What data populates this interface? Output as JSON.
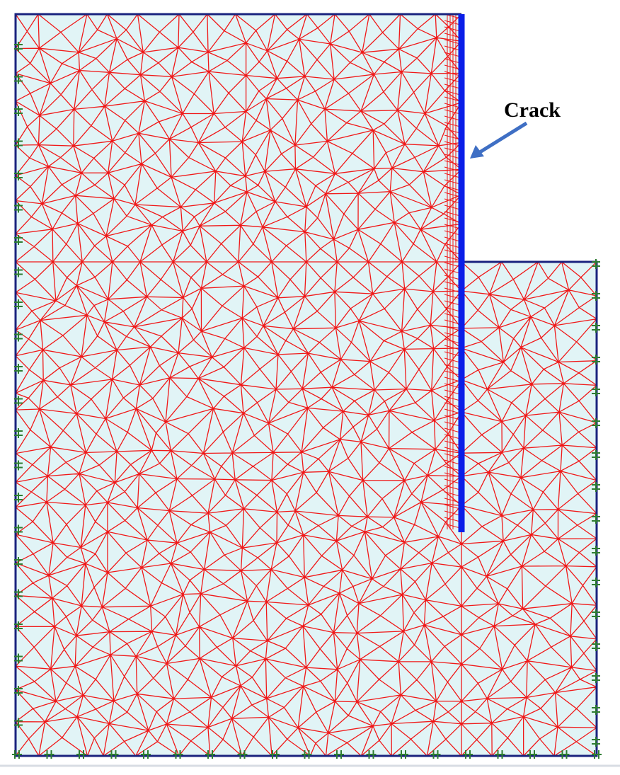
{
  "annotation": {
    "label": "Crack"
  }
}
